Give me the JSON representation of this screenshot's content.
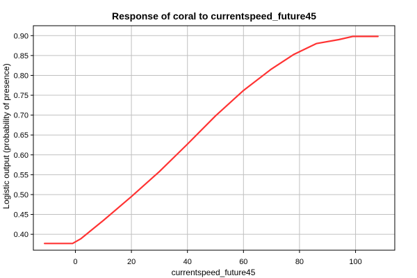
{
  "chart_data": {
    "type": "line",
    "title": "Response of coral to currentspeed_future45",
    "xlabel": "currentspeed_future45",
    "ylabel": "Logistic output (probability of presence)",
    "xlim": [
      -15,
      114
    ],
    "ylim": [
      0.36,
      0.925
    ],
    "xticks": [
      0,
      20,
      40,
      60,
      80,
      100
    ],
    "yticks": [
      0.4,
      0.45,
      0.5,
      0.55,
      0.6,
      0.65,
      0.7,
      0.75,
      0.8,
      0.85,
      0.9
    ],
    "grid": true,
    "series": [
      {
        "color": "#ff3333",
        "x": [
          -11,
          -1,
          2,
          10,
          20,
          30,
          40,
          50,
          60,
          70,
          78,
          86,
          94,
          99,
          108
        ],
        "y": [
          0.377,
          0.377,
          0.389,
          0.435,
          0.495,
          0.558,
          0.627,
          0.698,
          0.762,
          0.816,
          0.853,
          0.88,
          0.89,
          0.898,
          0.898
        ]
      }
    ]
  }
}
